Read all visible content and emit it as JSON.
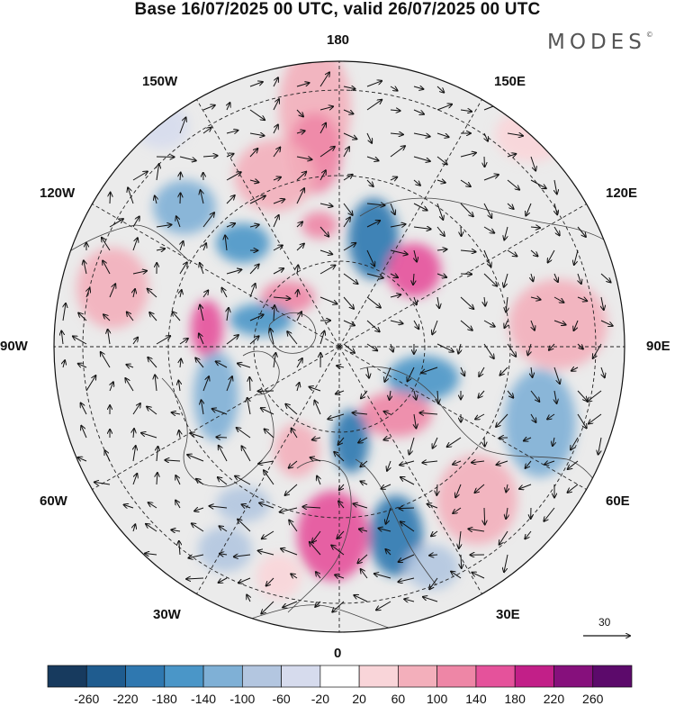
{
  "title": "Base 16/07/2025 00 UTC, valid 26/07/2025 00 UTC",
  "brand": "MODES",
  "brand_mark": "©",
  "longitude_labels": {
    "top": "180",
    "bottom": "0",
    "left": "90W",
    "right": "90E",
    "upper_left_1": "150W",
    "upper_left_2": "120W",
    "lower_left_1": "60W",
    "lower_left_2": "30W",
    "upper_right_1": "150E",
    "upper_right_2": "120E",
    "lower_right_1": "60E",
    "lower_right_2": "30E"
  },
  "reference_vector": {
    "label": "30"
  },
  "colorbar": {
    "ticks": [
      "-260",
      "-220",
      "-180",
      "-140",
      "-100",
      "-60",
      "-20",
      "20",
      "60",
      "100",
      "140",
      "180",
      "220",
      "260"
    ],
    "colors": [
      "#173a5e",
      "#1f5c8f",
      "#2f78b0",
      "#4a96c8",
      "#7fb0d6",
      "#b3c6e0",
      "#d6dbed",
      "#ffffff",
      "#f9d5d9",
      "#f3afbb",
      "#ee86a6",
      "#e5529b",
      "#c21f88",
      "#86107c",
      "#5c0a6b"
    ]
  },
  "map": {
    "projection": "north-polar-stereographic",
    "background_color": "#ebebeb",
    "graticule_style": "dashed"
  }
}
